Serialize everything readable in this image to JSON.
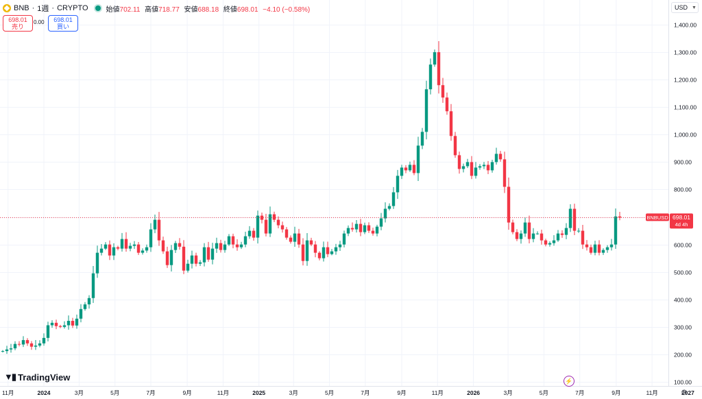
{
  "header": {
    "symbol": "BNB",
    "interval": "1週",
    "exchange": "CRYPTO",
    "ohlc": {
      "open_label": "始値",
      "open": "702.11",
      "high_label": "高値",
      "high": "718.77",
      "low_label": "安値",
      "low": "688.18",
      "close_label": "終値",
      "close": "698.01",
      "change": "−4.10 (−0.58%)"
    }
  },
  "trade": {
    "sell_price": "698.01",
    "sell_label": "売り",
    "spread": "0.00",
    "buy_price": "698.01",
    "buy_label": "買い"
  },
  "currency": "USD",
  "brand": "TradingView",
  "price_label": {
    "ticker": "BNBUSD",
    "price": "698.01",
    "countdown": "4d 4h"
  },
  "colors": {
    "up": "#089981",
    "down": "#f23645",
    "grid": "#f0f3fa",
    "text": "#131722"
  },
  "chart_data": {
    "type": "candlestick",
    "ylim": [
      85,
      1490
    ],
    "y_ticks": [
      "1,400.00",
      "1,300.00",
      "1,200.00",
      "1,100.00",
      "1,000.00",
      "900.00",
      "800.00",
      "700.00",
      "600.00",
      "500.00",
      "400.00",
      "300.00",
      "200.00",
      "100.00"
    ],
    "y_tick_values": [
      1400,
      1300,
      1200,
      1100,
      1000,
      900,
      800,
      700,
      600,
      500,
      400,
      300,
      200,
      100
    ],
    "x_ticks": [
      {
        "label": "11月",
        "date": "2023-11-01",
        "bold": false
      },
      {
        "label": "2024",
        "date": "2024-01-01",
        "bold": true
      },
      {
        "label": "3月",
        "date": "2024-03-01",
        "bold": false
      },
      {
        "label": "5月",
        "date": "2024-05-01",
        "bold": false
      },
      {
        "label": "7月",
        "date": "2024-07-01",
        "bold": false
      },
      {
        "label": "9月",
        "date": "2024-09-01",
        "bold": false
      },
      {
        "label": "11月",
        "date": "2024-11-01",
        "bold": false
      },
      {
        "label": "2025",
        "date": "2025-01-01",
        "bold": true
      },
      {
        "label": "3月",
        "date": "2025-03-01",
        "bold": false
      },
      {
        "label": "5月",
        "date": "2025-05-01",
        "bold": false
      },
      {
        "label": "7月",
        "date": "2025-07-01",
        "bold": false
      },
      {
        "label": "9月",
        "date": "2025-09-01",
        "bold": false
      },
      {
        "label": "11月",
        "date": "2025-11-01",
        "bold": false
      },
      {
        "label": "2026",
        "date": "2026-01-01",
        "bold": true
      },
      {
        "label": "3月",
        "date": "2026-03-01",
        "bold": false
      },
      {
        "label": "5月",
        "date": "2026-05-01",
        "bold": false
      },
      {
        "label": "7月",
        "date": "2026-07-01",
        "bold": false
      },
      {
        "label": "9月",
        "date": "2026-09-01",
        "bold": false
      },
      {
        "label": "11月",
        "date": "2026-11-01",
        "bold": false
      },
      {
        "label": "2027",
        "date": "2027-01-01",
        "bold": true
      },
      {
        "label": "3",
        "date": "2027-03-01",
        "bold": false
      }
    ],
    "last_price": 698.01,
    "weekly_opens": [
      210,
      212,
      218,
      222,
      238,
      236,
      252,
      240,
      228,
      232,
      240,
      260,
      306,
      315,
      303,
      300,
      306,
      322,
      305,
      330,
      365,
      382,
      405,
      495,
      570,
      585,
      600,
      560,
      590,
      585,
      620,
      585,
      595,
      600,
      570,
      578,
      590,
      655,
      690,
      615,
      575,
      525,
      580,
      605,
      592,
      505,
      530,
      560,
      530,
      535,
      590,
      545,
      585,
      605,
      580,
      600,
      630,
      600,
      590,
      600,
      630,
      650,
      625,
      705,
      690,
      640,
      710,
      690,
      670,
      655,
      625,
      610,
      640,
      600,
      540,
      615,
      600,
      570,
      550,
      590,
      565,
      575,
      590,
      600,
      640,
      660,
      655,
      675,
      645,
      670,
      650,
      640,
      665,
      695,
      730,
      740,
      790,
      850,
      880,
      870,
      890,
      860,
      960,
      1010,
      1165,
      1255,
      1300,
      1180,
      1135,
      1085,
      995,
      925,
      875,
      885,
      900,
      850,
      880,
      885,
      890,
      870,
      900,
      930,
      910,
      810,
      680,
      645,
      620,
      640,
      680,
      620,
      640,
      640,
      615,
      600,
      605,
      615,
      640,
      635,
      660,
      730,
      650,
      650,
      600,
      590,
      570,
      600,
      570,
      580,
      590,
      600
    ],
    "last_candle": {
      "open": 702.11,
      "high": 718.77,
      "low": 688.18,
      "close": 698.01
    }
  }
}
